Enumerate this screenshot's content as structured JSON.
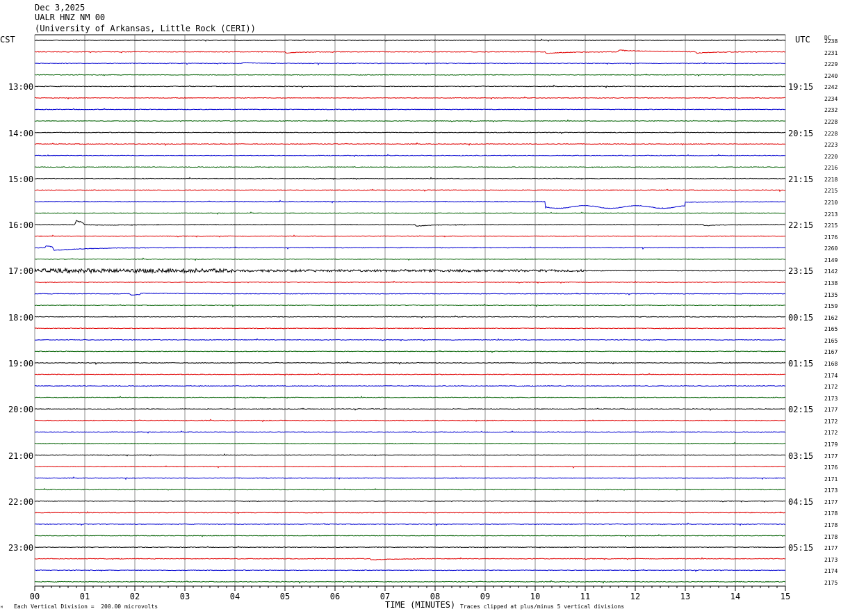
{
  "header": {
    "date": "Dec 3,2025",
    "station": "UALR HNZ NM 00",
    "institution": "(University of Arkansas, Little Rock (CERI))"
  },
  "left_axis_title": "CST",
  "right_axis_title": "UTC",
  "dc_title": "DC",
  "footer": {
    "scale_note": "Each Vertical Division =  200.00 microvolts",
    "xlabel": "TIME (MINUTES)",
    "clip_note": "Traces clipped at plus/minus 5 vertical divisions",
    "corner_mark": "ᴹ"
  },
  "colors": {
    "trace_cycle": [
      "#000000",
      "#e00000",
      "#0000d0",
      "#006000"
    ],
    "grid": "#8c8c8c"
  },
  "chart_data": {
    "type": "line",
    "title": "UALR HNZ NM 00",
    "xlabel": "TIME (MINUTES)",
    "xlim": [
      0,
      15
    ],
    "x_ticks": [
      "00",
      "01",
      "02",
      "03",
      "04",
      "05",
      "06",
      "07",
      "08",
      "09",
      "10",
      "11",
      "12",
      "13",
      "14",
      "15"
    ],
    "trace_count": 48,
    "cst_labels": [
      "13:00",
      "14:00",
      "15:00",
      "16:00",
      "17:00",
      "18:00",
      "19:00",
      "20:00",
      "21:00",
      "22:00",
      "23:00"
    ],
    "utc_labels": [
      "19:15",
      "20:15",
      "21:15",
      "22:15",
      "23:15",
      "00:15",
      "01:15",
      "02:15",
      "03:15",
      "04:15",
      "05:15"
    ],
    "hour_label_first_trace": 4,
    "hour_label_step": 4,
    "dc_values": [
      "2238",
      "2231",
      "2229",
      "2240",
      "2242",
      "2234",
      "2232",
      "2228",
      "2228",
      "2223",
      "2220",
      "2216",
      "2218",
      "2215",
      "2210",
      "2213",
      "2215",
      "2176",
      "2260",
      "2149",
      "2142",
      "2138",
      "2135",
      "2159",
      "2162",
      "2165",
      "2165",
      "2167",
      "2168",
      "2174",
      "2172",
      "2173",
      "2177",
      "2172",
      "2172",
      "2179",
      "2177",
      "2176",
      "2171",
      "2173",
      "2177",
      "2178",
      "2178",
      "2178",
      "2177",
      "2173",
      "2174",
      "2175"
    ],
    "events": [
      {
        "trace": 1,
        "minute": 5.0,
        "amp": -0.6,
        "decay": 0.3
      },
      {
        "trace": 1,
        "minute": 10.2,
        "amp": -0.8,
        "decay": 0.4
      },
      {
        "trace": 1,
        "minute": 11.65,
        "amp": 0.9,
        "decay": 0.6
      },
      {
        "trace": 1,
        "minute": 13.2,
        "amp": -0.8,
        "decay": 0.3
      },
      {
        "trace": 2,
        "minute": 4.15,
        "amp": 0.6,
        "decay": 0.2
      },
      {
        "trace": 14,
        "minute": 10.2,
        "amp": -3.2,
        "decay": 1.2,
        "hold": 2.8
      },
      {
        "trace": 16,
        "minute": 0.8,
        "amp": 2.2,
        "decay": 0.25
      },
      {
        "trace": 16,
        "minute": 0.95,
        "amp": -1.0,
        "decay": 0.5
      },
      {
        "trace": 16,
        "minute": 7.6,
        "amp": -0.8,
        "decay": 0.3
      },
      {
        "trace": 16,
        "minute": 13.35,
        "amp": -0.6,
        "decay": 0.3
      },
      {
        "trace": 18,
        "minute": 0.2,
        "amp": 1.2,
        "decay": 0.15
      },
      {
        "trace": 18,
        "minute": 0.35,
        "amp": -1.6,
        "decay": 0.6
      },
      {
        "trace": 22,
        "minute": 1.9,
        "amp": -0.8,
        "decay": 0.2
      },
      {
        "trace": 22,
        "minute": 2.1,
        "amp": 0.5,
        "decay": 0.6
      },
      {
        "trace": 45,
        "minute": 6.7,
        "amp": -0.6,
        "decay": 0.4
      }
    ],
    "noisy_traces": [
      {
        "trace": 20,
        "from": 0,
        "to": 4,
        "amp": 0.7
      },
      {
        "trace": 20,
        "from": 4,
        "to": 11,
        "amp": 0.35
      }
    ]
  }
}
